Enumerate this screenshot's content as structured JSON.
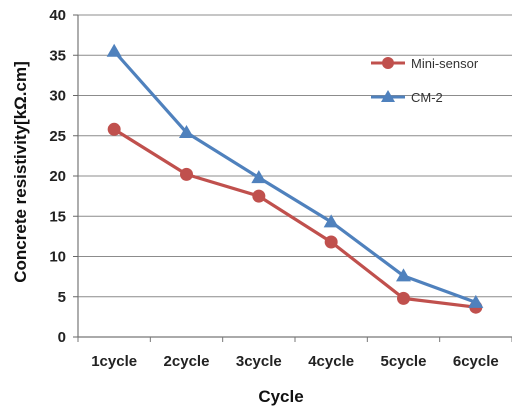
{
  "chart_data": {
    "type": "line",
    "categories": [
      "1cycle",
      "2cycle",
      "3cycle",
      "4cycle",
      "5cycle",
      "6cycle"
    ],
    "series": [
      {
        "name": "Mini-sensor",
        "values": [
          25.8,
          20.2,
          17.5,
          11.8,
          4.8,
          3.7
        ],
        "color": "#c0504d",
        "marker": "circle"
      },
      {
        "name": "CM-2",
        "values": [
          35.5,
          25.4,
          19.8,
          14.3,
          7.6,
          4.3
        ],
        "color": "#4f81bd",
        "marker": "triangle"
      }
    ],
    "xlabel": "Cycle",
    "ylabel": "Concrete resistivity[kΩ.cm]",
    "ylim": [
      0,
      40
    ],
    "yticks": [
      0,
      5,
      10,
      15,
      20,
      25,
      30,
      35,
      40
    ],
    "grid": "horizontal",
    "legend_position": "right"
  }
}
